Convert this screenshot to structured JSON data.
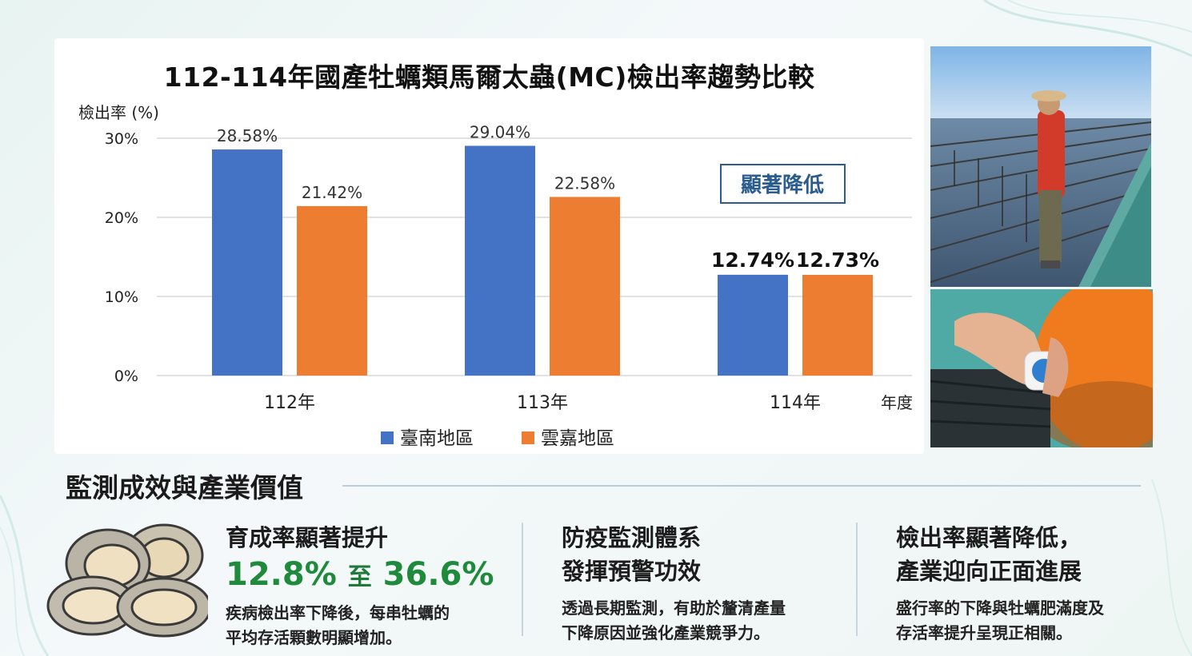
{
  "chart_data": {
    "type": "bar",
    "title": "112-114年國產牡蠣類馬爾太蟲(MC)檢出率趨勢比較",
    "ylabel": "檢出率 (%)",
    "xlabel": "年度",
    "categories": [
      "112年",
      "113年",
      "114年"
    ],
    "ylim": [
      0,
      30
    ],
    "yticks": [
      "0%",
      "10%",
      "20%",
      "30%"
    ],
    "grid": true,
    "legend_position": "bottom",
    "series": [
      {
        "name": "臺南地區",
        "values": [
          28.58,
          29.04,
          12.74
        ],
        "labels": [
          "28.58%",
          "29.04%",
          "12.74%"
        ],
        "color": "#4472c4"
      },
      {
        "name": "雲嘉地區",
        "values": [
          21.42,
          22.58,
          12.73
        ],
        "labels": [
          "21.42%",
          "22.58%",
          "12.73%"
        ],
        "color": "#ed7d31"
      }
    ],
    "annotation": "顯著降低"
  },
  "section": {
    "title": "監測成效與產業價值"
  },
  "panels": [
    {
      "head_lines": [
        "育成率顯著提升"
      ],
      "stat_from": "12.8%",
      "stat_mid": "至",
      "stat_to": "36.6%",
      "body_lines": [
        "疾病檢出率下降後，每串牡蠣的",
        "平均存活顆數明顯增加。"
      ]
    },
    {
      "head_lines": [
        "防疫監測體系",
        "發揮預警功效"
      ],
      "body_lines": [
        "透過長期監測，有助於釐清產量",
        "下降原因並強化產業競爭力。"
      ]
    },
    {
      "head_lines": [
        "檢出率顯著降低，",
        "產業迎向正面進展"
      ],
      "body_lines": [
        "盛行率的下降與牡蠣肥滿度及",
        "存活率提升呈現正相關。"
      ]
    }
  ],
  "colors": {
    "accent_green": "#1f8a3c",
    "annotation_blue": "#2b5c8f"
  },
  "icons": [
    "oyster-illustration",
    "oyster-farm-photo",
    "sensor-photo"
  ]
}
